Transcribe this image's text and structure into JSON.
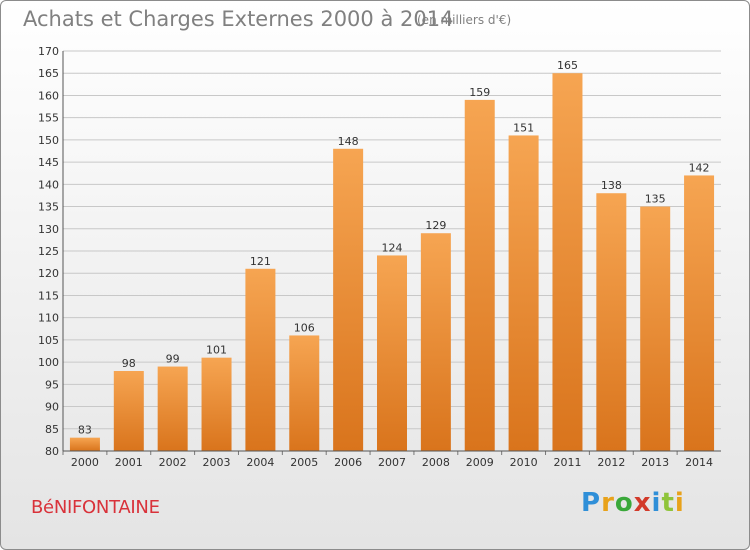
{
  "title": "Achats et Charges Externes 2000 à 2014",
  "subtitle": "(en milliers d'€)",
  "commune": "BéNIFONTAINE",
  "logo": {
    "text": "Proxiti",
    "letters": [
      "P",
      "r",
      "o",
      "x",
      "i",
      "t",
      "i"
    ],
    "colors": [
      "#2f8fd8",
      "#e8a21a",
      "#3aa83a",
      "#d23a2a",
      "#2f8fd8",
      "#8fc43a",
      "#e8a21a"
    ]
  },
  "colors": {
    "bar_light": "#f6a552",
    "bar_dark": "#d9741c",
    "grid": "#c8c8c8",
    "axis_text": "#333333",
    "commune_text": "#d9323a"
  },
  "chart_data": {
    "type": "bar",
    "title": "Achats et Charges Externes 2000 à 2014",
    "subtitle": "(en milliers d'€)",
    "categories": [
      "2000",
      "2001",
      "2002",
      "2003",
      "2004",
      "2005",
      "2006",
      "2007",
      "2008",
      "2009",
      "2010",
      "2011",
      "2012",
      "2013",
      "2014"
    ],
    "values": [
      83,
      98,
      99,
      101,
      121,
      106,
      148,
      124,
      129,
      159,
      151,
      165,
      138,
      135,
      142
    ],
    "data_labels": [
      "83",
      "98",
      "99",
      "101",
      "121",
      "106",
      "148",
      "124",
      "129",
      "159",
      "151",
      "165",
      "138",
      "135",
      "142"
    ],
    "yticks": [
      80,
      85,
      90,
      95,
      100,
      105,
      110,
      115,
      120,
      125,
      130,
      135,
      140,
      145,
      150,
      155,
      160,
      165,
      170
    ],
    "ylim": [
      80,
      170
    ],
    "grid": true,
    "legend": false
  }
}
